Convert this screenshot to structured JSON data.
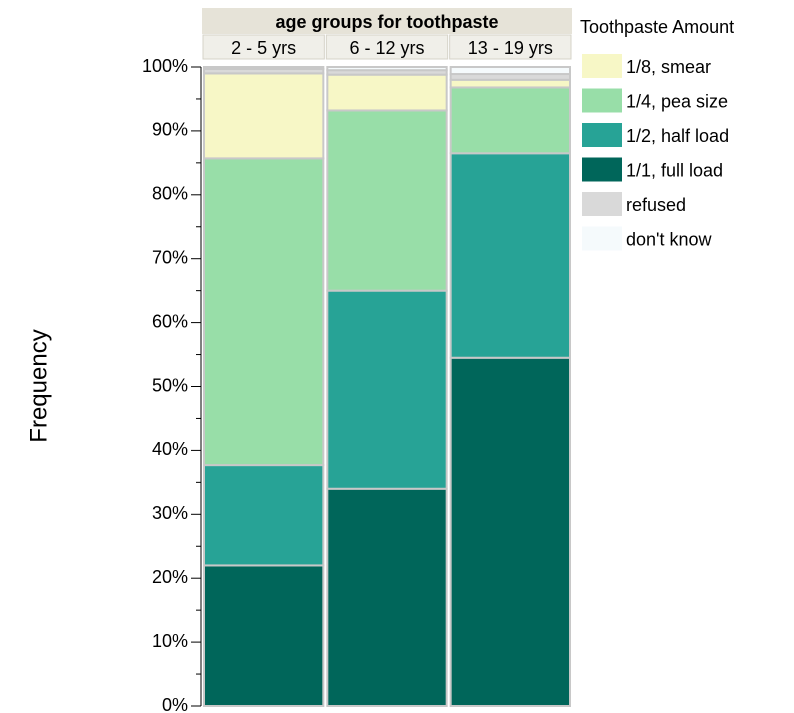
{
  "chart_data": {
    "type": "bar",
    "stacked": true,
    "normalized": true,
    "facet_title": "age groups for toothpaste",
    "categories": [
      "2 - 5 yrs",
      "6 - 12 yrs",
      "13 - 19 yrs"
    ],
    "category_widths": [
      0.333,
      0.333,
      0.333
    ],
    "ylabel": "Frequency",
    "ylim": [
      0,
      100
    ],
    "yticks": [
      "0%",
      "10%",
      "20%",
      "30%",
      "40%",
      "50%",
      "60%",
      "70%",
      "80%",
      "90%",
      "100%"
    ],
    "legend_title": "Toothpaste Amount",
    "legend_position": "right",
    "series": [
      {
        "name": "1/1, full load",
        "color": "#00665a",
        "values": [
          22,
          34,
          54.5
        ]
      },
      {
        "name": "1/2, half load",
        "color": "#27a396",
        "values": [
          15.7,
          31,
          32
        ]
      },
      {
        "name": "1/4, pea size",
        "color": "#98dea8",
        "values": [
          48,
          28.2,
          10.3
        ]
      },
      {
        "name": "1/8, smear",
        "color": "#f7f7c6",
        "values": [
          13.3,
          5.6,
          1.2
        ]
      },
      {
        "name": "refused",
        "color": "#d9d9d9",
        "values": [
          0.7,
          0.7,
          0.9
        ]
      },
      {
        "name": "don't know",
        "color": "#f5fafc",
        "values": [
          0.3,
          0.5,
          1.1
        ]
      }
    ],
    "legend_order": [
      "1/8, smear",
      "1/4, pea size",
      "1/2, half load",
      "1/1, full load",
      "refused",
      "don't know"
    ]
  }
}
